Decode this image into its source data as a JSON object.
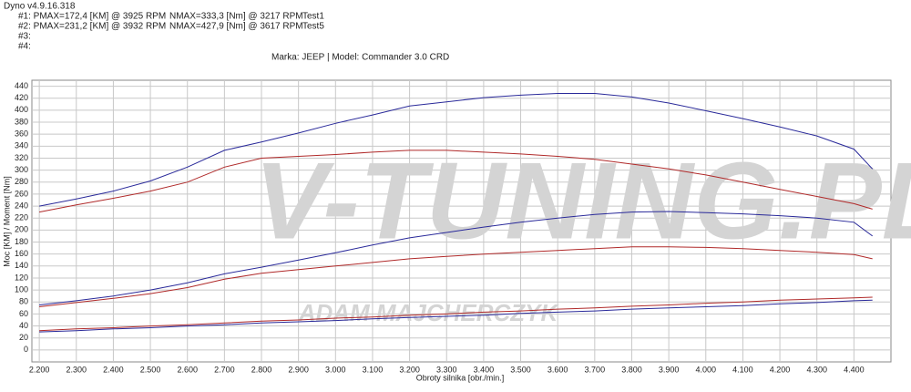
{
  "chart_data": {
    "type": "line",
    "header": [
      [
        "Dyno v4.9.16.318"
      ],
      [
        "#1: PMAX=172,4 [KM] @ 3925 RPM",
        "NMAX=333,3 [Nm] @ 3217 RPM",
        "Test1"
      ],
      [
        "#2: PMAX=231,2 [KM] @ 3932 RPM",
        "NMAX=427,9 [Nm] @ 3617 RPM",
        "Test5"
      ],
      [
        "#3:"
      ],
      [
        "#4:"
      ]
    ],
    "title": "Marka: JEEP | Model: Commander 3.0 CRD",
    "watermark": [
      "V-TUNING.PL",
      "ADAM MAJCHERCZYK"
    ],
    "x_label": "Obroty silnika [obr./min.]",
    "y_label": "Moc [KM] / Moment [Nm]",
    "x": [
      2200,
      2300,
      2400,
      2500,
      2600,
      2700,
      2800,
      2900,
      3000,
      3100,
      3200,
      3300,
      3400,
      3500,
      3600,
      3700,
      3800,
      3900,
      4000,
      4100,
      4200,
      4300,
      4400,
      4450
    ],
    "series": [
      {
        "color": "#2a2a9a",
        "values": [
          240,
          252,
          265,
          282,
          305,
          333,
          347,
          362,
          378,
          392,
          407,
          414,
          421,
          425,
          428,
          428,
          422,
          412,
          399,
          386,
          372,
          357,
          335,
          302
        ]
      },
      {
        "color": "#b02a2a",
        "values": [
          230,
          242,
          253,
          265,
          280,
          305,
          320,
          323,
          326,
          330,
          333,
          333,
          330,
          327,
          323,
          318,
          310,
          302,
          292,
          280,
          268,
          256,
          244,
          235
        ]
      },
      {
        "color": "#2a2a9a",
        "values": [
          75,
          82,
          90,
          100,
          112,
          127,
          138,
          150,
          162,
          175,
          187,
          196,
          205,
          213,
          220,
          226,
          230,
          231,
          229,
          227,
          224,
          220,
          213,
          190
        ]
      },
      {
        "color": "#b02a2a",
        "values": [
          72,
          79,
          86,
          94,
          104,
          118,
          128,
          134,
          140,
          146,
          152,
          156,
          160,
          163,
          166,
          169,
          172,
          172,
          171,
          169,
          166,
          163,
          159,
          152
        ]
      },
      {
        "color": "#2a2a9a",
        "values": [
          30,
          32,
          35,
          37,
          40,
          42,
          45,
          47,
          49,
          52,
          54,
          56,
          58,
          61,
          63,
          65,
          68,
          70,
          72,
          74,
          77,
          79,
          82,
          83
        ]
      },
      {
        "color": "#b02a2a",
        "values": [
          32,
          35,
          37,
          40,
          42,
          45,
          48,
          50,
          53,
          55,
          58,
          60,
          63,
          65,
          68,
          70,
          73,
          75,
          78,
          80,
          83,
          85,
          87,
          88
        ]
      }
    ],
    "xlim": [
      2180,
      4500
    ],
    "ylim": [
      -20,
      450
    ],
    "xticks": [
      {
        "value": 2200,
        "label": "2.200"
      },
      {
        "value": 2300,
        "label": "2.300"
      },
      {
        "value": 2400,
        "label": "2.400"
      },
      {
        "value": 2500,
        "label": "2.500"
      },
      {
        "value": 2600,
        "label": "2.600"
      },
      {
        "value": 2700,
        "label": "2.700"
      },
      {
        "value": 2800,
        "label": "2.800"
      },
      {
        "value": 2900,
        "label": "2.900"
      },
      {
        "value": 3000,
        "label": "3.000"
      },
      {
        "value": 3100,
        "label": "3.100"
      },
      {
        "value": 3200,
        "label": "3.200"
      },
      {
        "value": 3300,
        "label": "3.300"
      },
      {
        "value": 3400,
        "label": "3.400"
      },
      {
        "value": 3500,
        "label": "3.500"
      },
      {
        "value": 3600,
        "label": "3.600"
      },
      {
        "value": 3700,
        "label": "3.700"
      },
      {
        "value": 3800,
        "label": "3.800"
      },
      {
        "value": 3900,
        "label": "3.900"
      },
      {
        "value": 4000,
        "label": "4.000"
      },
      {
        "value": 4100,
        "label": "4.100"
      },
      {
        "value": 4200,
        "label": "4.200"
      },
      {
        "value": 4300,
        "label": "4.300"
      },
      {
        "value": 4400,
        "label": "4.400"
      }
    ],
    "yticks": [
      0,
      20,
      40,
      60,
      80,
      100,
      120,
      140,
      160,
      180,
      200,
      220,
      240,
      260,
      280,
      300,
      320,
      340,
      360,
      380,
      400,
      420,
      440
    ],
    "grid": true
  }
}
